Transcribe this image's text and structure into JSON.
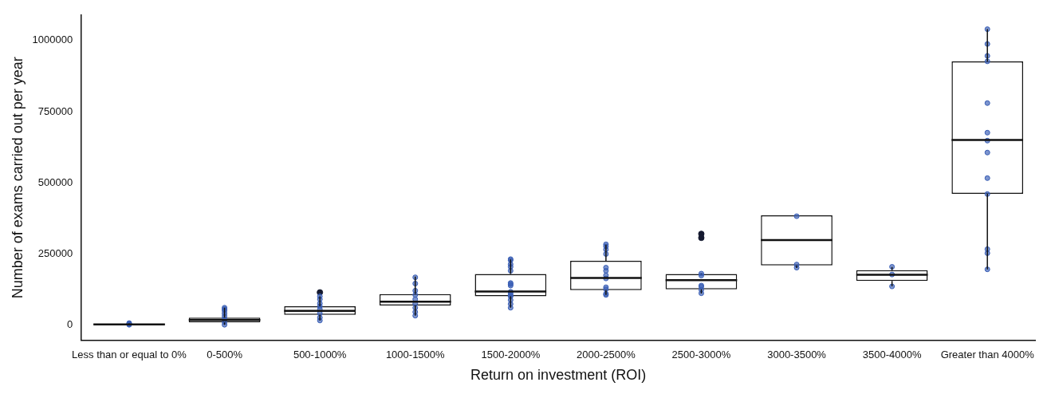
{
  "chart_data": {
    "type": "box",
    "xlabel": "Return on investment (ROI)",
    "ylabel": "Number of exams carried out per year",
    "categories": [
      "Less than or equal to 0%",
      "0-500%",
      "500-1000%",
      "1000-1500%",
      "1500-2000%",
      "2000-2500%",
      "2500-3000%",
      "3000-3500%",
      "3500-4000%",
      "Greater than 4000%"
    ],
    "ylim": [
      -55000,
      1090000
    ],
    "yticks": [
      0,
      250000,
      500000,
      750000,
      1000000
    ],
    "grid": false,
    "legend": false,
    "boxes": [
      {
        "low": 0,
        "q1": 500,
        "median": 1000,
        "q3": 2000,
        "high": 5000
      },
      {
        "low": 0,
        "q1": 8000,
        "median": 17000,
        "q3": 25000,
        "high": 60000
      },
      {
        "low": 15000,
        "q1": 35000,
        "median": 49000,
        "q3": 65000,
        "high": 100000,
        "outliers": [
          114000
        ]
      },
      {
        "low": 32000,
        "q1": 68000,
        "median": 81000,
        "q3": 108000,
        "high": 170000
      },
      {
        "low": 60000,
        "q1": 100000,
        "median": 117000,
        "q3": 179000,
        "high": 230000
      },
      {
        "low": 105000,
        "q1": 122000,
        "median": 165000,
        "q3": 225000,
        "high": 282000
      },
      {
        "low": 110000,
        "q1": 125000,
        "median": 157000,
        "q3": 179000,
        "high": 180000,
        "outliers": [
          320000,
          306000
        ]
      },
      {
        "low": 200000,
        "q1": 209000,
        "median": 298000,
        "q3": 385000,
        "high": 385000
      },
      {
        "low": 135000,
        "q1": 154000,
        "median": 176000,
        "q3": 192000,
        "high": 203000
      },
      {
        "low": 195000,
        "q1": 461000,
        "median": 650000,
        "q3": 927000,
        "high": 1040000
      }
    ],
    "series": [
      {
        "type": "scatter",
        "color": "#3a5fb5",
        "marker": "circle",
        "x": [
          "Less than or equal to 0%",
          "Less than or equal to 0%",
          "Less than or equal to 0%",
          "Less than or equal to 0%",
          "0-500%",
          "0-500%",
          "0-500%",
          "0-500%",
          "0-500%",
          "0-500%",
          "0-500%",
          "0-500%",
          "500-1000%",
          "500-1000%",
          "500-1000%",
          "500-1000%",
          "500-1000%",
          "500-1000%",
          "500-1000%",
          "500-1000%",
          "1000-1500%",
          "1000-1500%",
          "1000-1500%",
          "1000-1500%",
          "1000-1500%",
          "1000-1500%",
          "1000-1500%",
          "1000-1500%",
          "1000-1500%",
          "1500-2000%",
          "1500-2000%",
          "1500-2000%",
          "1500-2000%",
          "1500-2000%",
          "1500-2000%",
          "1500-2000%",
          "1500-2000%",
          "1500-2000%",
          "1500-2000%",
          "1500-2000%",
          "1500-2000%",
          "1500-2000%",
          "1500-2000%",
          "1500-2000%",
          "2000-2500%",
          "2000-2500%",
          "2000-2500%",
          "2000-2500%",
          "2000-2500%",
          "2000-2500%",
          "2000-2500%",
          "2000-2500%",
          "2000-2500%",
          "2000-2500%",
          "2000-2500%",
          "2000-2500%",
          "2500-3000%",
          "2500-3000%",
          "2500-3000%",
          "2500-3000%",
          "2500-3000%",
          "2500-3000%",
          "3000-3500%",
          "3000-3500%",
          "3000-3500%",
          "3500-4000%",
          "3500-4000%",
          "3500-4000%",
          "Greater than 4000%",
          "Greater than 4000%",
          "Greater than 4000%",
          "Greater than 4000%",
          "Greater than 4000%",
          "Greater than 4000%",
          "Greater than 4000%",
          "Greater than 4000%",
          "Greater than 4000%",
          "Greater than 4000%",
          "Greater than 4000%",
          "Greater than 4000%",
          "Greater than 4000%"
        ],
        "values": [
          0,
          2000,
          4000,
          6000,
          0,
          10000,
          20000,
          30000,
          40000,
          50000,
          55000,
          60000,
          15000,
          25000,
          40000,
          55000,
          65000,
          75000,
          90000,
          100000,
          32000,
          45000,
          60000,
          75000,
          90000,
          105000,
          120000,
          145000,
          167000,
          231000,
          227000,
          213000,
          204000,
          190000,
          147000,
          143000,
          138000,
          116000,
          109000,
          103000,
          100000,
          87000,
          73000,
          60000,
          283000,
          276000,
          265000,
          249000,
          201000,
          190000,
          174000,
          163000,
          132000,
          125000,
          109000,
          105000,
          180000,
          173000,
          138000,
          134000,
          123000,
          111000,
          382000,
          212000,
          201000,
          204000,
          177000,
          135000,
          1040000,
          988000,
          946000,
          927000,
          780000,
          676000,
          648000,
          606000,
          516000,
          460000,
          266000,
          252000,
          195000
        ]
      }
    ]
  }
}
